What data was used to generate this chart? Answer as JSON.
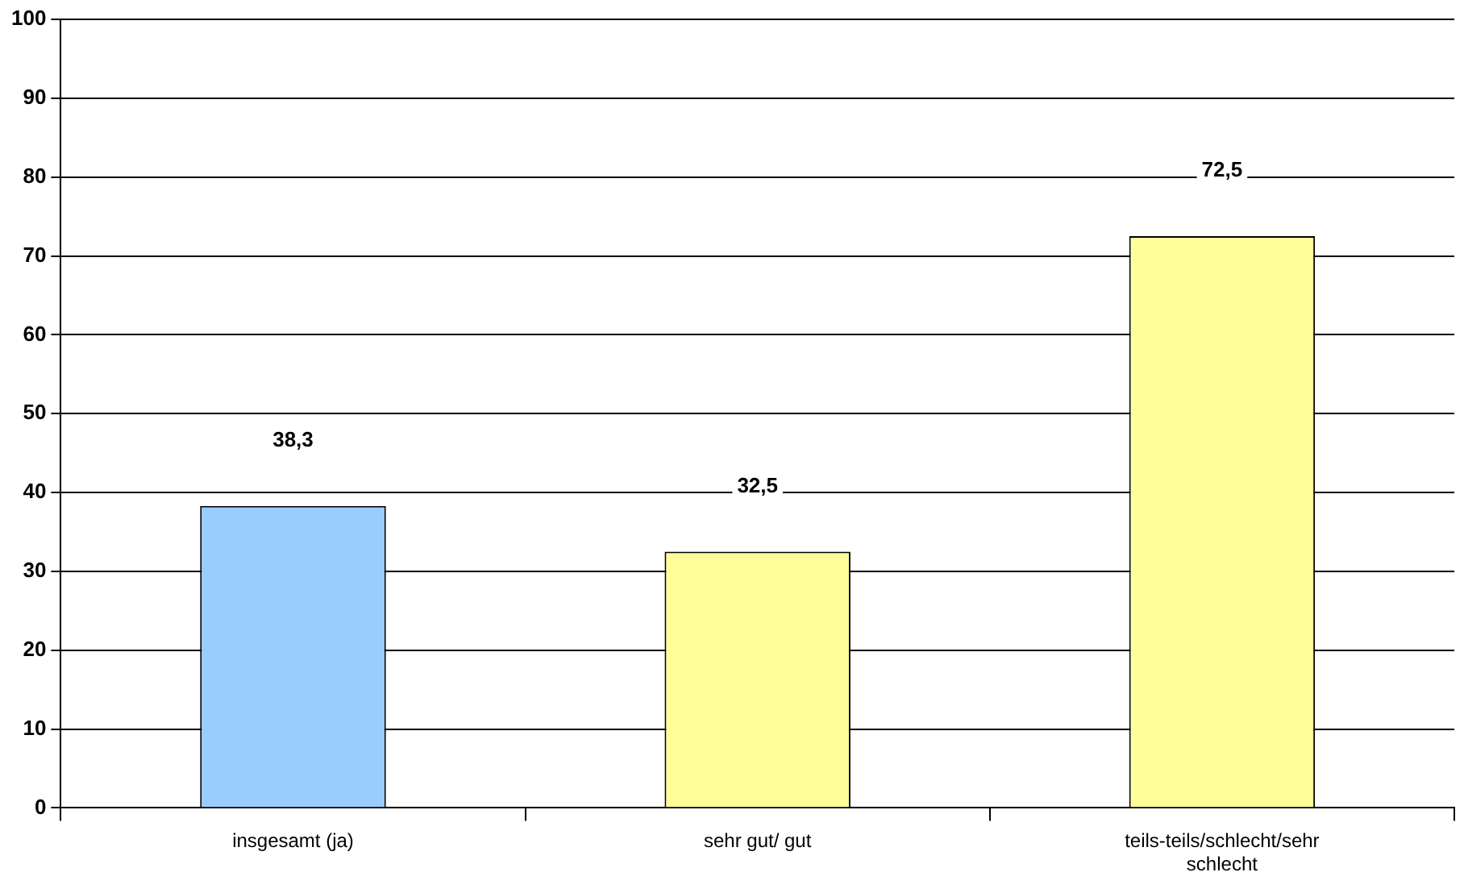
{
  "chart_data": {
    "type": "bar",
    "categories": [
      "insgesamt (ja)",
      "sehr gut/ gut",
      "teils-teils/schlecht/sehr schlecht"
    ],
    "values": [
      38.3,
      32.5,
      72.5
    ],
    "colors": [
      "#99ccff",
      "#ffff99",
      "#ffff99"
    ],
    "value_labels": [
      "38,3",
      "32,5",
      "72,5"
    ],
    "ylim": [
      0,
      100
    ],
    "yticks": [
      0,
      10,
      20,
      30,
      40,
      50,
      60,
      70,
      80,
      90,
      100
    ],
    "grid": "y",
    "legend": false
  }
}
